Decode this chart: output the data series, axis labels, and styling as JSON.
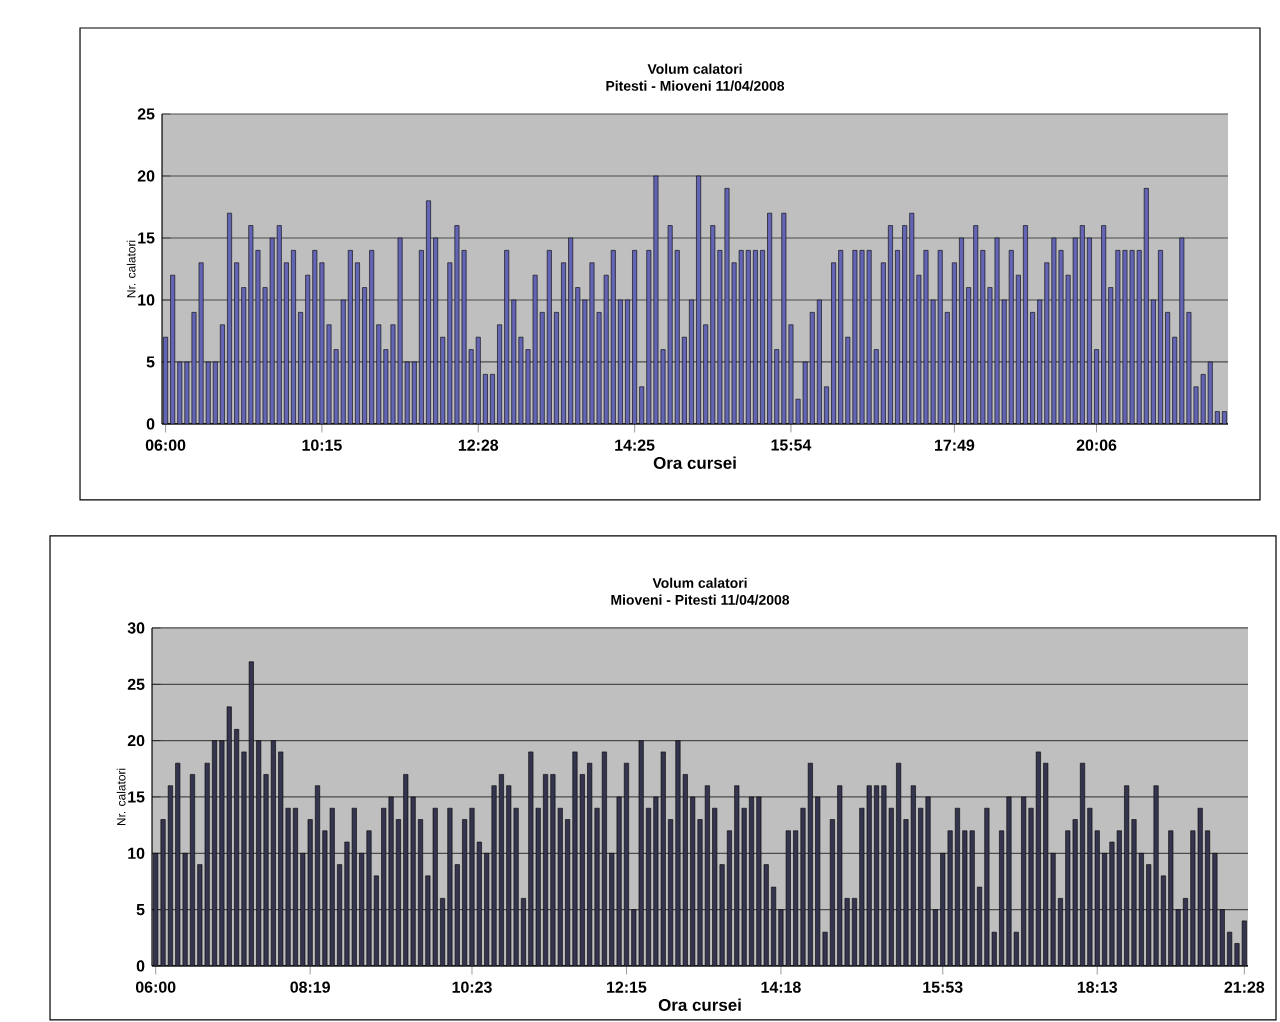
{
  "chart_data": [
    {
      "type": "bar",
      "title": "Volum calatori",
      "subtitle": "Pitesti - Mioveni 11/04/2008",
      "xlabel": "Ora cursei",
      "ylabel": "Nr. calatori",
      "color": "#6464b4",
      "ylim": [
        0,
        25
      ],
      "yticks": [
        0,
        5,
        10,
        15,
        20,
        25
      ],
      "grid": "y",
      "categories": [
        "06:00",
        null,
        null,
        null,
        null,
        null,
        null,
        null,
        null,
        null,
        null,
        null,
        null,
        null,
        null,
        null,
        null,
        null,
        null,
        null,
        null,
        null,
        "10:15",
        null,
        null,
        null,
        null,
        null,
        null,
        null,
        null,
        null,
        null,
        null,
        null,
        null,
        null,
        null,
        null,
        null,
        null,
        null,
        null,
        null,
        "12:28",
        null,
        null,
        null,
        null,
        null,
        null,
        null,
        null,
        null,
        null,
        null,
        null,
        null,
        null,
        null,
        null,
        null,
        null,
        null,
        null,
        null,
        "14:25",
        null,
        null,
        null,
        null,
        null,
        null,
        null,
        null,
        null,
        null,
        null,
        null,
        null,
        null,
        null,
        null,
        null,
        null,
        null,
        null,
        null,
        "15:54",
        null,
        null,
        null,
        null,
        null,
        null,
        null,
        null,
        null,
        null,
        null,
        null,
        null,
        null,
        null,
        null,
        null,
        null,
        null,
        null,
        null,
        null,
        "17:49",
        null,
        null,
        null,
        null,
        null,
        null,
        null,
        null,
        null,
        null,
        null,
        null,
        null,
        null,
        null,
        null,
        null,
        null,
        null,
        "20:06",
        null,
        null,
        null,
        null,
        null,
        null,
        null,
        null,
        null,
        null,
        null,
        null,
        null,
        null,
        null,
        null,
        null,
        null
      ],
      "values": [
        7,
        12,
        5,
        5,
        9,
        13,
        5,
        5,
        8,
        17,
        13,
        11,
        16,
        14,
        11,
        15,
        16,
        13,
        14,
        9,
        12,
        14,
        13,
        8,
        6,
        10,
        14,
        13,
        11,
        14,
        8,
        6,
        8,
        15,
        5,
        5,
        14,
        18,
        15,
        7,
        13,
        16,
        14,
        6,
        7,
        4,
        4,
        8,
        14,
        10,
        7,
        6,
        12,
        9,
        14,
        9,
        13,
        15,
        11,
        10,
        13,
        9,
        12,
        14,
        10,
        10,
        14,
        3,
        14,
        20,
        6,
        16,
        14,
        7,
        10,
        20,
        8,
        16,
        14,
        19,
        13,
        14,
        14,
        14,
        14,
        17,
        6,
        17,
        8,
        2,
        5,
        9,
        10,
        3,
        13,
        14,
        7,
        14,
        14,
        14,
        6,
        13,
        16,
        14,
        16,
        17,
        12,
        14,
        10,
        14,
        9,
        13,
        15,
        11,
        16,
        14,
        11,
        15,
        10,
        14,
        12,
        16,
        9,
        10,
        13,
        15,
        14,
        12,
        15,
        16,
        15,
        6,
        16,
        11,
        14,
        14,
        14,
        14,
        19,
        10,
        14,
        9,
        7,
        15,
        9,
        3,
        4,
        5,
        1,
        1
      ]
    },
    {
      "type": "bar",
      "title": "Volum calatori",
      "subtitle": "Mioveni - Pitesti 11/04/2008",
      "xlabel": "Ora cursei",
      "ylabel": "Nr. calatori",
      "color": "#34344e",
      "ylim": [
        0,
        30
      ],
      "yticks": [
        0,
        5,
        10,
        15,
        20,
        25,
        30
      ],
      "grid": "y",
      "categories": [
        "06:00",
        null,
        null,
        null,
        null,
        null,
        null,
        null,
        null,
        null,
        null,
        null,
        null,
        null,
        null,
        null,
        null,
        null,
        null,
        null,
        null,
        "08:19",
        null,
        null,
        null,
        null,
        null,
        null,
        null,
        null,
        null,
        null,
        null,
        null,
        null,
        null,
        null,
        null,
        null,
        null,
        null,
        null,
        null,
        "10:23",
        null,
        null,
        null,
        null,
        null,
        null,
        null,
        null,
        null,
        null,
        null,
        null,
        null,
        null,
        null,
        null,
        null,
        null,
        null,
        null,
        "12:15",
        null,
        null,
        null,
        null,
        null,
        null,
        null,
        null,
        null,
        null,
        null,
        null,
        null,
        null,
        null,
        null,
        null,
        null,
        null,
        null,
        "14:18",
        null,
        null,
        null,
        null,
        null,
        null,
        null,
        null,
        null,
        null,
        null,
        null,
        null,
        null,
        null,
        null,
        null,
        null,
        null,
        null,
        null,
        "15:53",
        null,
        null,
        null,
        null,
        null,
        null,
        null,
        null,
        null,
        null,
        null,
        null,
        null,
        null,
        null,
        null,
        null,
        null,
        null,
        null,
        "18:13",
        null,
        null,
        null,
        null,
        null,
        null,
        null,
        null,
        null,
        null,
        null,
        null,
        null,
        null,
        null,
        null,
        null,
        null,
        null,
        "21:28"
      ],
      "values": [
        10,
        13,
        16,
        18,
        10,
        17,
        9,
        18,
        20,
        20,
        23,
        21,
        19,
        27,
        20,
        17,
        20,
        19,
        14,
        14,
        10,
        13,
        16,
        12,
        14,
        9,
        11,
        14,
        10,
        12,
        8,
        14,
        15,
        13,
        17,
        15,
        13,
        8,
        14,
        6,
        14,
        9,
        13,
        14,
        11,
        10,
        16,
        17,
        16,
        14,
        6,
        19,
        14,
        17,
        17,
        14,
        13,
        19,
        17,
        18,
        14,
        19,
        10,
        15,
        18,
        5,
        20,
        14,
        15,
        19,
        13,
        20,
        17,
        15,
        13,
        16,
        14,
        9,
        12,
        16,
        14,
        15,
        15,
        9,
        7,
        5,
        12,
        12,
        14,
        18,
        15,
        3,
        13,
        16,
        6,
        6,
        14,
        16,
        16,
        16,
        14,
        18,
        13,
        16,
        14,
        15,
        5,
        10,
        12,
        14,
        12,
        12,
        7,
        14,
        3,
        12,
        15,
        3,
        15,
        14,
        19,
        18,
        10,
        6,
        12,
        13,
        18,
        14,
        12,
        10,
        11,
        12,
        16,
        13,
        10,
        9,
        16,
        8,
        12,
        5,
        6,
        12,
        14,
        12,
        10,
        5,
        3,
        2,
        4
      ]
    }
  ]
}
